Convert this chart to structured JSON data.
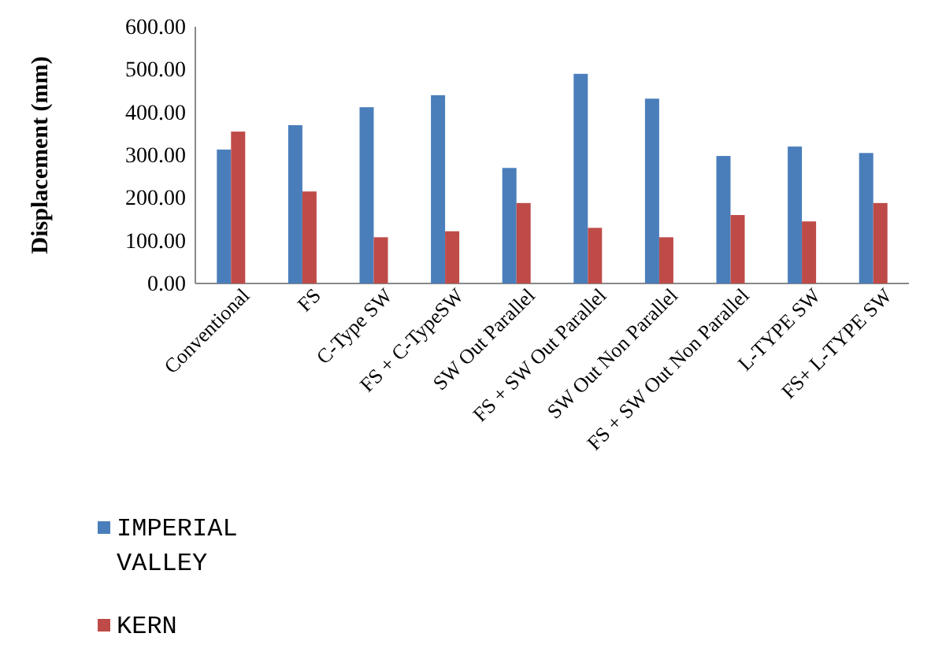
{
  "chart_data": {
    "type": "bar",
    "ylabel": "Displacement (mm)",
    "categories": [
      "Conventional",
      "FS",
      "C-Type SW",
      "FS + C-TypeSW",
      "SW Out Parallel",
      "FS + SW Out Parallel",
      "SW Out Non Parallel",
      "FS + SW Out Non Parallel",
      "L-TYPE SW",
      "FS+ L-TYPE  SW"
    ],
    "series": [
      {
        "name": "IMPERIAL VALLEY",
        "color": "#4a7ebb",
        "values": [
          313,
          370,
          412,
          440,
          270,
          490,
          432,
          298,
          320,
          305
        ]
      },
      {
        "name": "KERN",
        "color": "#be4b48",
        "values": [
          355,
          215,
          108,
          122,
          188,
          130,
          108,
          160,
          145,
          188
        ]
      }
    ],
    "ylim": [
      0,
      600
    ],
    "yticks": [
      {
        "value": 0,
        "label": "0.00"
      },
      {
        "value": 100,
        "label": "100.00"
      },
      {
        "value": 200,
        "label": "200.00"
      },
      {
        "value": 300,
        "label": "300.00"
      },
      {
        "value": 400,
        "label": "400.00"
      },
      {
        "value": 500,
        "label": "500.00"
      },
      {
        "value": 600,
        "label": "600.00"
      }
    ],
    "grid": false,
    "legend": "bottom left"
  }
}
